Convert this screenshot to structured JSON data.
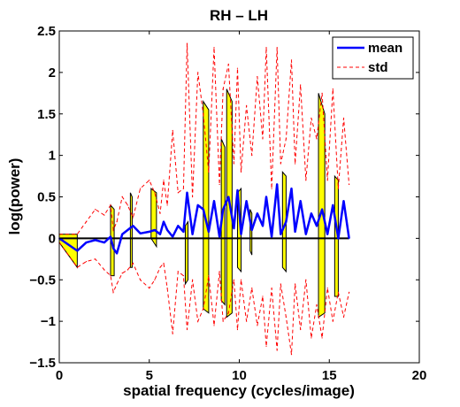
{
  "chart_data": {
    "type": "line",
    "title": "RH – LH",
    "xlabel": "spatial frequency (cycles/image)",
    "ylabel": "log(power)",
    "xlim": [
      0,
      20
    ],
    "ylim": [
      -1.5,
      2.5
    ],
    "xticks": [
      0,
      5,
      10,
      15,
      20
    ],
    "yticks": [
      -1.5,
      -1,
      -0.5,
      0,
      0.5,
      1,
      1.5,
      2,
      2.5
    ],
    "xtick_labels": [
      "0",
      "5",
      "10",
      "15",
      "20"
    ],
    "ytick_labels": [
      "−1.5",
      "−1",
      "−0.5",
      "0",
      "0.5",
      "1",
      "1.5",
      "2",
      "2.5"
    ],
    "grid": false,
    "legend_position": "top-right",
    "zero_line": true,
    "fill_color": "#ffff00",
    "series": [
      {
        "name": "mean",
        "style": "solid",
        "color": "#0000ff",
        "x": [
          0,
          1,
          1.5,
          2,
          2.5,
          2.85,
          3,
          3.2,
          3.5,
          3.8,
          4.1,
          4.5,
          5,
          5.3,
          5.6,
          5.8,
          6,
          6.3,
          6.6,
          6.9,
          7.1,
          7.4,
          7.7,
          8,
          8.3,
          8.6,
          8.9,
          9.1,
          9.4,
          9.7,
          9.9,
          10.1,
          10.4,
          10.7,
          11,
          11.3,
          11.5,
          11.8,
          12.1,
          12.3,
          12.6,
          12.9,
          13.1,
          13.4,
          13.7,
          14,
          14.3,
          14.6,
          14.9,
          15.2,
          15.5,
          15.8,
          16.1
        ],
        "y": [
          0,
          -0.15,
          -0.05,
          -0.02,
          -0.05,
          0.02,
          -0.12,
          -0.18,
          0.05,
          0.1,
          0.15,
          0.06,
          0.08,
          0.1,
          0.05,
          0.2,
          0.1,
          0.02,
          0.15,
          0.08,
          0.55,
          0.05,
          0.4,
          0.35,
          0.08,
          0.45,
          0.02,
          0.35,
          0.5,
          0.12,
          0.58,
          0.05,
          0.45,
          0.1,
          0.3,
          0.15,
          0.5,
          0.02,
          0.65,
          0.05,
          0.2,
          0.6,
          0.08,
          0.45,
          0.05,
          0.3,
          0.15,
          0.35,
          0.05,
          0.4,
          0.0,
          0.45,
          0.0
        ]
      },
      {
        "name": "std",
        "style": "dashed",
        "color": "#ff0000",
        "upper": [
          0.05,
          0.05,
          0.2,
          0.35,
          0.28,
          0.4,
          0.1,
          0.2,
          0.5,
          0.4,
          0.25,
          0.6,
          0.7,
          0.55,
          0.3,
          0.7,
          0.4,
          1.3,
          0.55,
          0.6,
          2.35,
          0.5,
          2.0,
          1.5,
          0.8,
          2.3,
          0.65,
          1.8,
          2.1,
          0.9,
          2.05,
          0.8,
          1.6,
          1.0,
          1.95,
          1.2,
          2.3,
          0.6,
          2.3,
          0.9,
          1.2,
          2.15,
          0.9,
          1.85,
          0.7,
          1.45,
          1.2,
          1.75,
          0.7,
          1.8,
          0.6,
          1.45,
          0.65
        ],
        "lower": [
          -0.05,
          -0.35,
          -0.28,
          -0.25,
          -0.38,
          -0.45,
          -0.65,
          -0.55,
          -0.42,
          -0.38,
          -0.3,
          -0.5,
          -0.6,
          -0.5,
          -0.35,
          -0.3,
          -0.6,
          -1.15,
          -0.4,
          -0.45,
          -1.1,
          -0.5,
          -1.0,
          -0.85,
          -0.45,
          -1.05,
          -0.4,
          -1.0,
          -0.9,
          -0.5,
          -1.1,
          -0.5,
          -1.0,
          -0.6,
          -1.05,
          -0.7,
          -1.3,
          -0.6,
          -1.35,
          -0.55,
          -0.95,
          -1.4,
          -0.55,
          -1.1,
          -0.5,
          -1.2,
          -0.8,
          -1.2,
          -0.6,
          -1.0,
          -0.65,
          -0.95,
          -0.65
        ]
      }
    ],
    "fill_bands": [
      {
        "x": [
          0,
          1
        ],
        "y1": [
          0.05,
          0.05
        ],
        "y2": [
          -0.05,
          -0.35
        ]
      },
      {
        "x": [
          2.85,
          3.05
        ],
        "y1": [
          0.4,
          0.35
        ],
        "y2": [
          -0.45,
          -0.45
        ]
      },
      {
        "x": [
          3.95,
          4.05
        ],
        "y1": [
          0.55,
          0.5
        ],
        "y2": [
          -0.35,
          -0.35
        ]
      },
      {
        "x": [
          5.1,
          5.4
        ],
        "y1": [
          0.6,
          0.55
        ],
        "y2": [
          0.0,
          -0.1
        ]
      },
      {
        "x": [
          7.0,
          7.15
        ],
        "y1": [
          0.15,
          0.2
        ],
        "y2": [
          -0.55,
          -0.5
        ]
      },
      {
        "x": [
          8.0,
          8.3
        ],
        "y1": [
          1.65,
          1.55
        ],
        "y2": [
          -0.85,
          -0.9
        ]
      },
      {
        "x": [
          9.0,
          9.2
        ],
        "y1": [
          1.2,
          1.1
        ],
        "y2": [
          -0.75,
          -0.8
        ]
      },
      {
        "x": [
          9.3,
          9.6
        ],
        "y1": [
          1.8,
          1.65
        ],
        "y2": [
          -0.95,
          -0.9
        ]
      },
      {
        "x": [
          9.9,
          10.1
        ],
        "y1": [
          0.55,
          0.6
        ],
        "y2": [
          -0.35,
          -0.4
        ]
      },
      {
        "x": [
          10.6,
          10.7
        ],
        "y1": [
          0.35,
          0.3
        ],
        "y2": [
          -0.15,
          -0.2
        ]
      },
      {
        "x": [
          12.4,
          12.6
        ],
        "y1": [
          0.8,
          0.75
        ],
        "y2": [
          -0.35,
          -0.4
        ]
      },
      {
        "x": [
          14.4,
          14.75
        ],
        "y1": [
          1.75,
          1.5
        ],
        "y2": [
          -0.95,
          -0.9
        ]
      },
      {
        "x": [
          15.3,
          15.5
        ],
        "y1": [
          0.75,
          0.7
        ],
        "y2": [
          -0.7,
          -0.7
        ]
      }
    ]
  }
}
